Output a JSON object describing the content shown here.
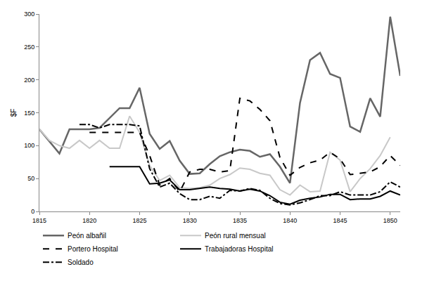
{
  "chart_data": {
    "type": "line",
    "y_label": "$F",
    "x": [
      1815,
      1816,
      1817,
      1818,
      1819,
      1820,
      1821,
      1822,
      1823,
      1824,
      1825,
      1826,
      1827,
      1828,
      1829,
      1830,
      1831,
      1832,
      1833,
      1834,
      1835,
      1836,
      1837,
      1838,
      1839,
      1840,
      1841,
      1842,
      1843,
      1844,
      1845,
      1846,
      1847,
      1848,
      1849,
      1850,
      1851
    ],
    "series": [
      {
        "name": "Peón albañil",
        "color": "#666666",
        "line_style": "solid",
        "values": [
          125,
          106,
          88,
          125,
          125,
          125,
          127,
          142,
          157,
          157,
          188,
          118,
          95,
          107,
          77,
          57,
          58,
          72,
          84,
          90,
          94,
          92,
          83,
          87,
          68,
          43,
          165,
          230,
          241,
          209,
          203,
          129,
          121,
          172,
          144,
          296,
          206
        ]
      },
      {
        "name": "Peón rural mensual",
        "color": "#c8c8c8",
        "line_style": "solid",
        "values": [
          125,
          108,
          100,
          96,
          108,
          96,
          108,
          96,
          96,
          145,
          120,
          70,
          47,
          55,
          36,
          35,
          36,
          40,
          50,
          56,
          66,
          64,
          58,
          55,
          33,
          25,
          40,
          30,
          31,
          90,
          78,
          30,
          50,
          65,
          85,
          113,
          null
        ]
      },
      {
        "name": "Portero Hospital",
        "color": "#000000",
        "line_style": "dash",
        "values": [
          null,
          null,
          null,
          null,
          null,
          120,
          120,
          120,
          120,
          120,
          120,
          85,
          40,
          50,
          30,
          60,
          64,
          64,
          60,
          62,
          172,
          168,
          155,
          138,
          82,
          55,
          67,
          74,
          78,
          90,
          80,
          56,
          58,
          60,
          68,
          85,
          70
        ]
      },
      {
        "name": "Trabajadoras Hospital",
        "color": "#000000",
        "line_style": "solid",
        "values": [
          null,
          null,
          null,
          null,
          null,
          null,
          null,
          68,
          68,
          68,
          68,
          42,
          43,
          48,
          33,
          33,
          35,
          37,
          35,
          34,
          31,
          34,
          31,
          24,
          14,
          11,
          17,
          20,
          22,
          26,
          26,
          18,
          19,
          19,
          23,
          31,
          25
        ]
      },
      {
        "name": "Soldado",
        "color": "#000000",
        "line_style": "dashdot",
        "values": [
          null,
          null,
          null,
          null,
          132,
          132,
          127,
          132,
          132,
          132,
          130,
          65,
          37,
          43,
          27,
          18,
          18,
          23,
          20,
          32,
          31,
          35,
          32,
          20,
          12,
          10,
          13,
          18,
          24,
          24,
          30,
          25,
          25,
          25,
          30,
          45,
          37
        ]
      }
    ],
    "xlim": [
      1815,
      1851
    ],
    "xticks": [
      1815,
      1820,
      1825,
      1830,
      1835,
      1840,
      1845,
      1850
    ],
    "ylim": [
      0,
      300
    ],
    "yticks": [
      0,
      50,
      100,
      150,
      200,
      250,
      300
    ],
    "grid": false,
    "legend": "bottom"
  }
}
